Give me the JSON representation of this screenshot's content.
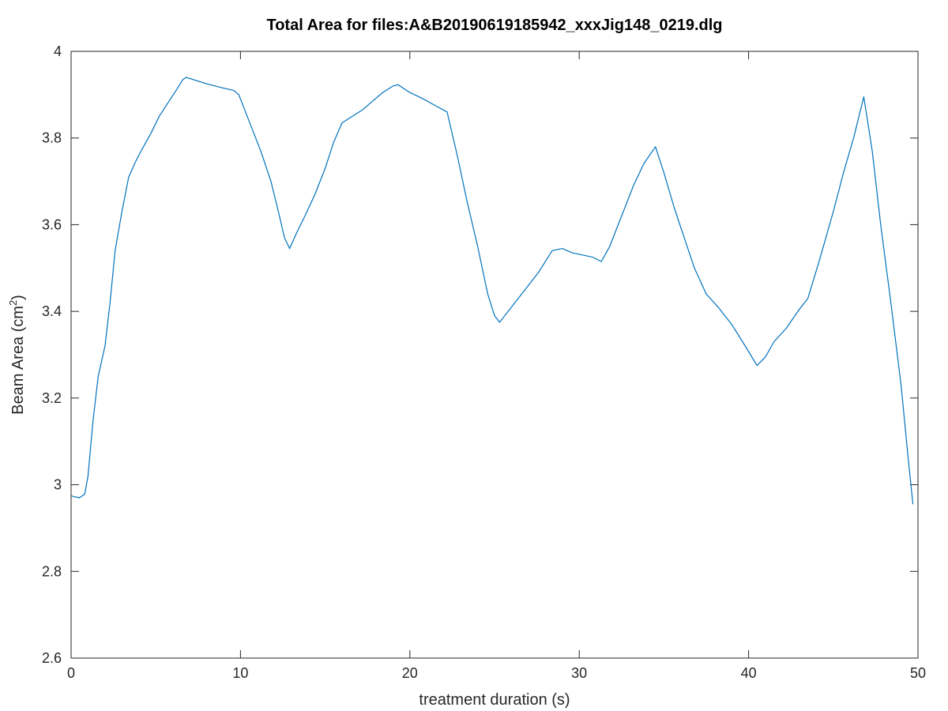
{
  "chart_data": {
    "type": "line",
    "title": "Total Area for files:A&B20190619185942_xxxJig148_0219.dlg",
    "xlabel": "treatment duration (s)",
    "ylabel_main": "Beam Area (cm",
    "ylabel_sup": "2",
    "ylabel_close": ")",
    "xlim": [
      0,
      50
    ],
    "ylim": [
      2.6,
      4.0
    ],
    "xticks": [
      "0",
      "10",
      "20",
      "30",
      "40",
      "50"
    ],
    "yticks": [
      "2.6",
      "2.8",
      "3",
      "3.2",
      "3.4",
      "3.6",
      "3.8",
      "4"
    ],
    "grid": false,
    "line_color": "#0072BD",
    "series": [
      {
        "x": [
          0,
          0.2,
          0.5,
          0.8,
          1.0,
          1.3,
          1.6,
          2.0,
          2.3,
          2.6,
          3.0,
          3.4,
          3.8,
          4.2,
          4.7,
          5.2,
          5.7,
          6.2,
          6.6,
          6.8,
          7.2,
          8.0,
          9.0,
          9.6,
          9.9,
          10.5,
          11.2,
          11.8,
          12.3,
          12.6,
          12.9,
          13.3,
          13.8,
          14.4,
          15.0,
          15.5,
          16.0,
          16.6,
          17.2,
          17.8,
          18.4,
          19.0,
          19.3,
          20.0,
          20.8,
          21.5,
          22.2,
          22.8,
          23.4,
          24.0,
          24.6,
          25.0,
          25.3,
          26.0,
          26.8,
          27.6,
          28.4,
          29.0,
          29.6,
          30.2,
          30.8,
          31.3,
          31.8,
          32.5,
          33.2,
          33.8,
          34.5,
          35.0,
          35.6,
          36.2,
          36.8,
          37.5,
          38.2,
          39.0,
          39.8,
          40.5,
          41.0,
          41.5,
          42.2,
          43.0,
          43.5,
          44.2,
          45.0,
          45.6,
          46.2,
          46.8,
          47.3,
          47.8,
          48.4,
          49.0,
          49.4,
          49.7
        ],
        "y": [
          2.975,
          2.972,
          2.97,
          2.978,
          3.02,
          3.15,
          3.25,
          3.32,
          3.42,
          3.54,
          3.63,
          3.71,
          3.745,
          3.775,
          3.81,
          3.85,
          3.88,
          3.91,
          3.935,
          3.94,
          3.935,
          3.925,
          3.915,
          3.91,
          3.9,
          3.84,
          3.77,
          3.7,
          3.62,
          3.57,
          3.545,
          3.58,
          3.62,
          3.67,
          3.73,
          3.79,
          3.835,
          3.85,
          3.865,
          3.885,
          3.905,
          3.92,
          3.923,
          3.905,
          3.89,
          3.875,
          3.86,
          3.76,
          3.65,
          3.55,
          3.44,
          3.39,
          3.375,
          3.41,
          3.45,
          3.49,
          3.54,
          3.545,
          3.535,
          3.53,
          3.525,
          3.515,
          3.55,
          3.62,
          3.69,
          3.74,
          3.78,
          3.72,
          3.64,
          3.57,
          3.5,
          3.44,
          3.41,
          3.37,
          3.32,
          3.275,
          3.295,
          3.33,
          3.36,
          3.405,
          3.43,
          3.52,
          3.63,
          3.72,
          3.8,
          3.895,
          3.77,
          3.6,
          3.42,
          3.23,
          3.07,
          2.955
        ]
      }
    ]
  }
}
